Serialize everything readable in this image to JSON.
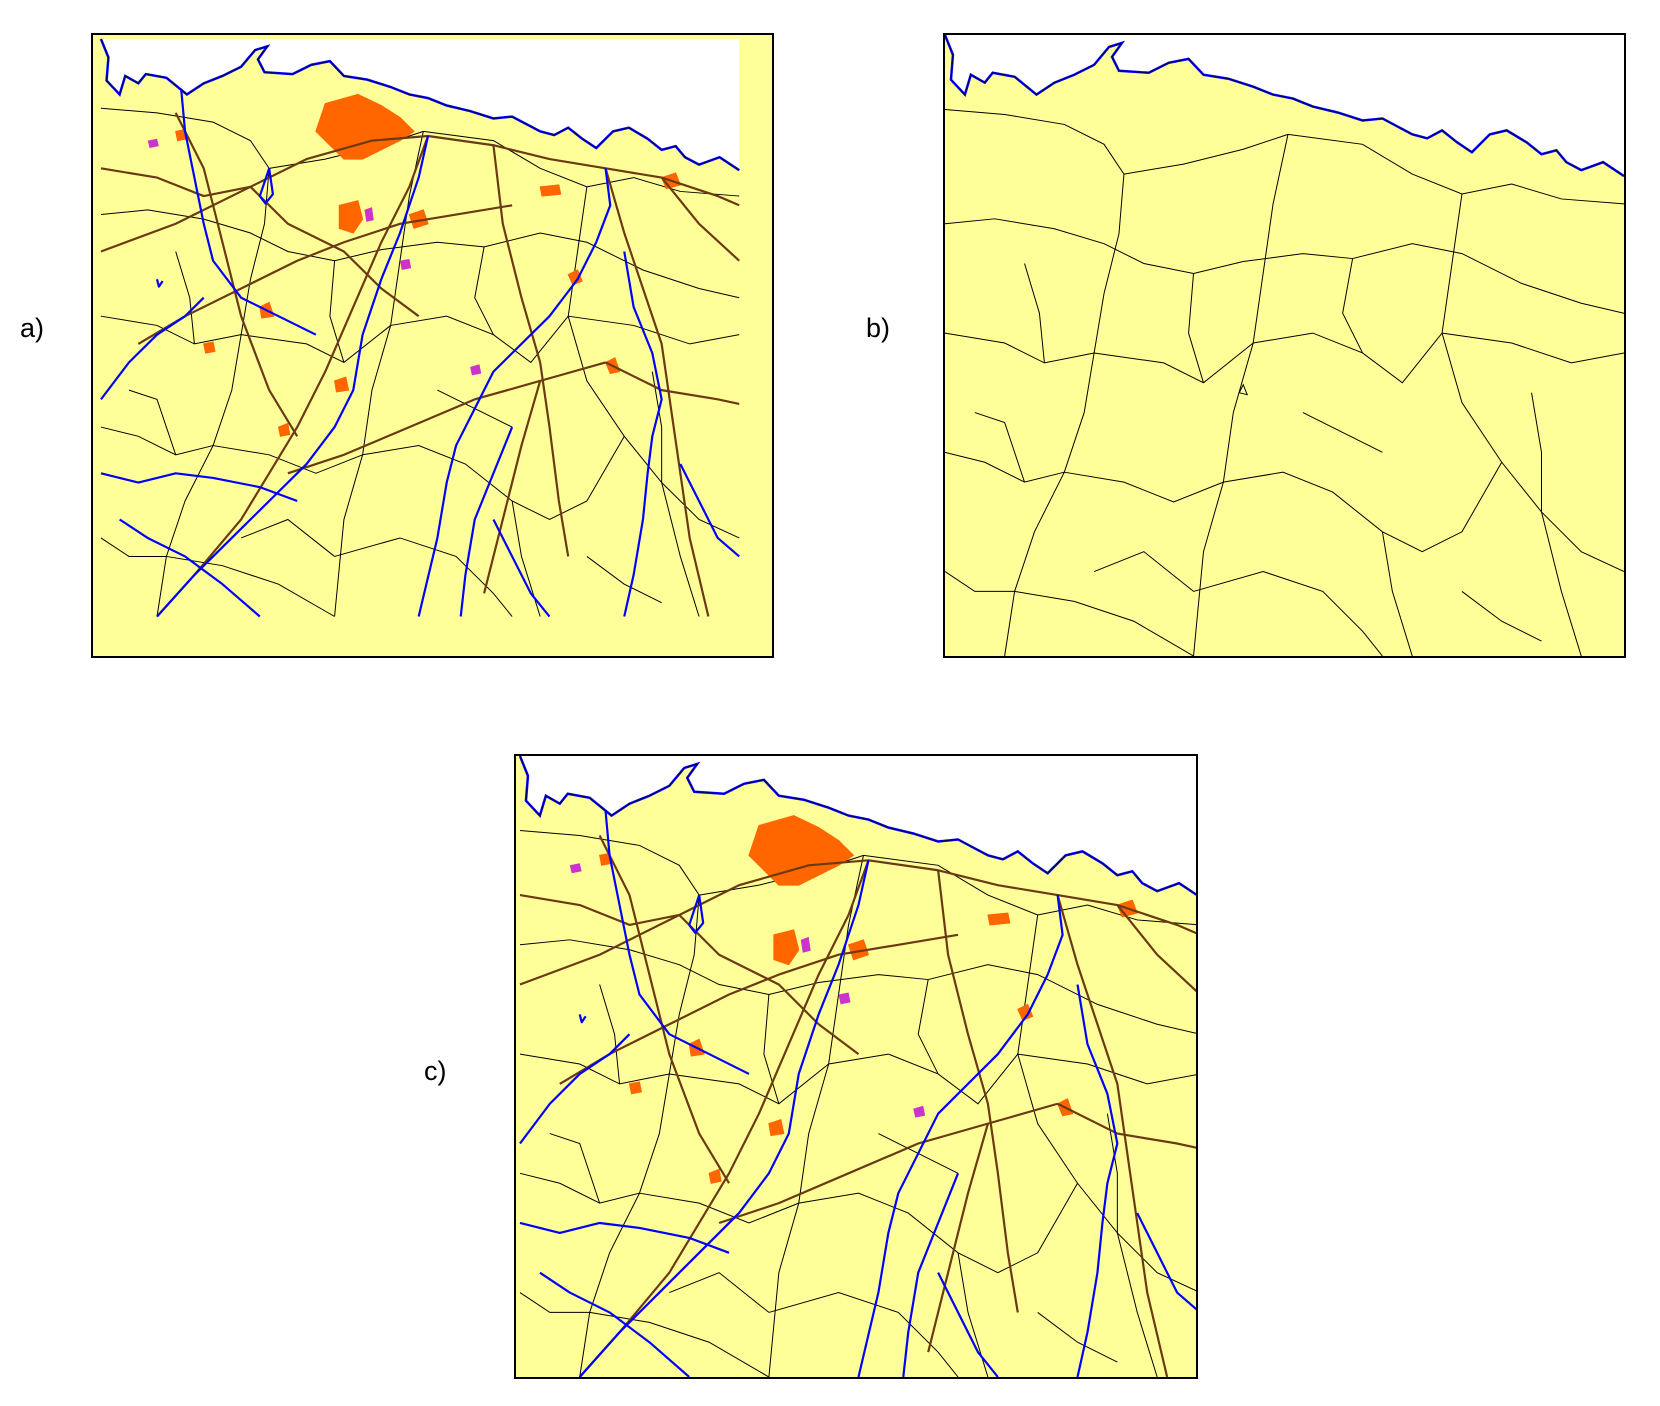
{
  "panels": [
    {
      "id": "a",
      "label": "a)",
      "content": "full"
    },
    {
      "id": "b",
      "label": "b)",
      "content": "boundaries"
    },
    {
      "id": "c",
      "label": "c)",
      "content": "full"
    }
  ],
  "colors": {
    "land": "#ffff99",
    "boundary": "#000000",
    "river": "#0000ff",
    "road": "#6b3a12",
    "urban": "#ff6600",
    "industrial": "#cc33cc"
  }
}
